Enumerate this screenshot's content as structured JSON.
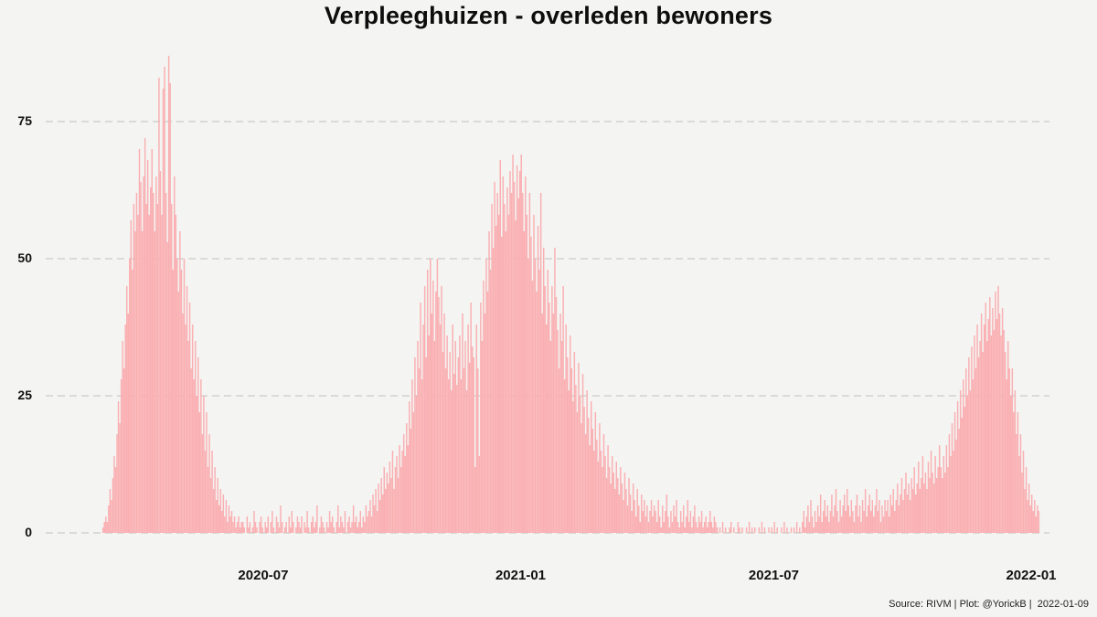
{
  "title": "Verpleeghuizen - overleden bewoners",
  "footer": {
    "source_line": "Source: RIVM | Plot: @YorickB |  2022-01-09"
  },
  "chart_data": {
    "type": "bar",
    "title": "Verpleeghuizen - overleden bewoners",
    "xlabel": "",
    "ylabel": "",
    "frequency": "daily",
    "start_date": "2020-03-08",
    "ylim": [
      0,
      90
    ],
    "y_ticks": [
      0,
      25,
      50,
      75
    ],
    "x_ticks": [
      {
        "label": "2020-07",
        "day": 115
      },
      {
        "label": "2021-01",
        "day": 299
      },
      {
        "label": "2021-07",
        "day": 480
      },
      {
        "label": "2022-01",
        "day": 664
      }
    ],
    "grid": "dashed-horizontal",
    "legend_position": "none",
    "bar_color": "#faafb2",
    "background_color": "#f4f4f2",
    "gridline_color": "#c9c9c7",
    "text_color": "#111111",
    "values": [
      1,
      2,
      3,
      2,
      5,
      8,
      6,
      10,
      14,
      12,
      18,
      24,
      20,
      28,
      35,
      30,
      38,
      45,
      40,
      50,
      57,
      48,
      60,
      55,
      62,
      58,
      70,
      64,
      55,
      65,
      72,
      60,
      68,
      58,
      63,
      70,
      62,
      55,
      65,
      60,
      83,
      66,
      58,
      81,
      85,
      62,
      53,
      87,
      82,
      60,
      48,
      65,
      58,
      50,
      44,
      55,
      48,
      40,
      50,
      38,
      45,
      35,
      42,
      30,
      38,
      28,
      35,
      25,
      32,
      22,
      28,
      18,
      25,
      15,
      22,
      12,
      18,
      10,
      15,
      8,
      12,
      6,
      10,
      5,
      8,
      4,
      7,
      3,
      6,
      2,
      5,
      3,
      4,
      2,
      3,
      1,
      2,
      3,
      1,
      2,
      2,
      1,
      0,
      3,
      1,
      2,
      0,
      1,
      4,
      2,
      1,
      0,
      2,
      3,
      1,
      0,
      2,
      1,
      3,
      0,
      2,
      4,
      1,
      0,
      3,
      2,
      1,
      5,
      2,
      0,
      1,
      2,
      0,
      3,
      1,
      4,
      2,
      0,
      1,
      3,
      2,
      1,
      3,
      0,
      2,
      1,
      4,
      1,
      0,
      2,
      3,
      1,
      2,
      5,
      0,
      1,
      3,
      2,
      1,
      0,
      2,
      1,
      4,
      2,
      3,
      1,
      0,
      2,
      5,
      1,
      3,
      2,
      1,
      4,
      0,
      2,
      3,
      1,
      2,
      5,
      2,
      3,
      1,
      2,
      4,
      1,
      3,
      2,
      5,
      3,
      4,
      6,
      3,
      7,
      5,
      8,
      4,
      9,
      6,
      10,
      7,
      12,
      8,
      11,
      9,
      13,
      10,
      15,
      8,
      12,
      14,
      10,
      16,
      12,
      15,
      18,
      14,
      20,
      16,
      24,
      19,
      28,
      22,
      32,
      25,
      35,
      30,
      42,
      28,
      38,
      45,
      32,
      48,
      36,
      50,
      40,
      46,
      35,
      44,
      50,
      43,
      38,
      45,
      33,
      40,
      30,
      36,
      28,
      33,
      26,
      38,
      29,
      35,
      27,
      32,
      36,
      28,
      40,
      30,
      35,
      26,
      38,
      31,
      42,
      34,
      32,
      12,
      38,
      30,
      14,
      42,
      35,
      46,
      40,
      50,
      44,
      55,
      48,
      60,
      52,
      64,
      56,
      62,
      58,
      68,
      54,
      65,
      60,
      55,
      63,
      58,
      66,
      62,
      69,
      64,
      57,
      67,
      61,
      66,
      69,
      62,
      55,
      65,
      58,
      50,
      62,
      54,
      46,
      58,
      50,
      44,
      56,
      48,
      62,
      40,
      52,
      45,
      38,
      48,
      42,
      35,
      45,
      40,
      52,
      43,
      37,
      30,
      40,
      35,
      45,
      28,
      38,
      32,
      26,
      36,
      30,
      24,
      33,
      27,
      22,
      31,
      25,
      20,
      29,
      23,
      18,
      26,
      21,
      16,
      24,
      19,
      15,
      22,
      17,
      13,
      20,
      15,
      12,
      18,
      14,
      10,
      16,
      12,
      9,
      14,
      11,
      8,
      13,
      10,
      7,
      12,
      9,
      6,
      11,
      8,
      5,
      10,
      7,
      4,
      9,
      6,
      3,
      8,
      5,
      2,
      7,
      4,
      6,
      3,
      5,
      2,
      4,
      6,
      3,
      5,
      4,
      2,
      6,
      3,
      1,
      5,
      2,
      4,
      7,
      3,
      1,
      4,
      2,
      5,
      3,
      6,
      2,
      1,
      4,
      2,
      5,
      1,
      3,
      6,
      2,
      4,
      1,
      3,
      5,
      2,
      1,
      3,
      2,
      4,
      1,
      2,
      3,
      1,
      2,
      4,
      2,
      1,
      3,
      2,
      1,
      0,
      1,
      0,
      2,
      0,
      1,
      0,
      0,
      1,
      2,
      0,
      1,
      0,
      0,
      2,
      1,
      0,
      1,
      0,
      0,
      1,
      0,
      2,
      0,
      1,
      0,
      1,
      0,
      0,
      1,
      0,
      2,
      0,
      1,
      0,
      0,
      1,
      0,
      1,
      0,
      2,
      0,
      1,
      0,
      0,
      1,
      0,
      2,
      0,
      1,
      0,
      0,
      1,
      0,
      1,
      0,
      2,
      0,
      1,
      0,
      2,
      4,
      1,
      3,
      5,
      2,
      6,
      3,
      1,
      4,
      2,
      5,
      3,
      7,
      2,
      4,
      6,
      3,
      5,
      2,
      4,
      7,
      3,
      5,
      8,
      4,
      2,
      6,
      3,
      5,
      7,
      4,
      8,
      5,
      3,
      6,
      4,
      2,
      5,
      7,
      3,
      5,
      2,
      6,
      4,
      8,
      3,
      5,
      7,
      4,
      6,
      3,
      5,
      8,
      4,
      6,
      2,
      5,
      3,
      6,
      4,
      6,
      3,
      7,
      5,
      8,
      4,
      6,
      9,
      5,
      7,
      10,
      6,
      8,
      11,
      7,
      9,
      6,
      10,
      8,
      12,
      7,
      9,
      13,
      8,
      10,
      14,
      9,
      11,
      8,
      13,
      10,
      15,
      11,
      9,
      14,
      10,
      12,
      16,
      12,
      10,
      14,
      11,
      16,
      12,
      18,
      14,
      20,
      15,
      22,
      17,
      24,
      19,
      26,
      21,
      28,
      23,
      30,
      25,
      32,
      26,
      34,
      28,
      36,
      30,
      38,
      32,
      35,
      40,
      33,
      38,
      42,
      35,
      39,
      43,
      36,
      41,
      37,
      44,
      39,
      45,
      40,
      36,
      41,
      37,
      33,
      28,
      35,
      30,
      25,
      30,
      22,
      26,
      18,
      22,
      14,
      18,
      11,
      15,
      8,
      12,
      6,
      9,
      5,
      7,
      4,
      6,
      3,
      5,
      4
    ]
  }
}
